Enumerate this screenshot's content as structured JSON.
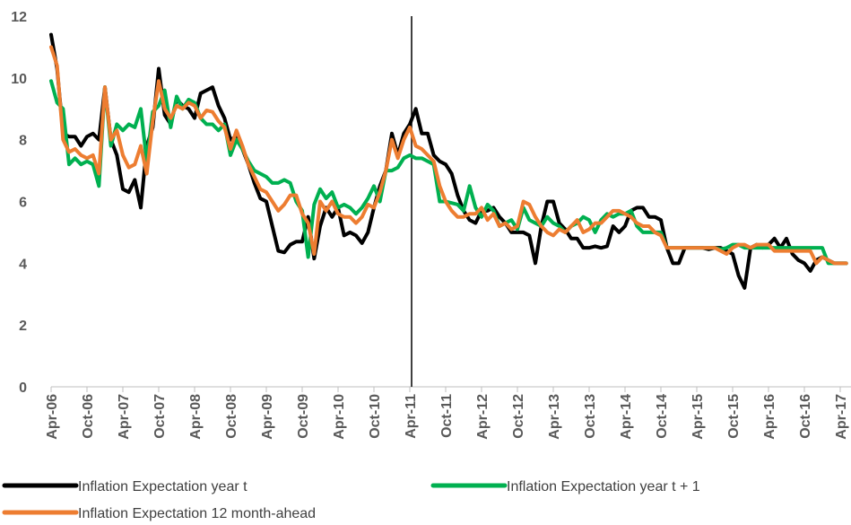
{
  "chart_data": {
    "type": "line",
    "categories": [
      "Apr-06",
      null,
      null,
      null,
      null,
      null,
      "Oct-06",
      null,
      null,
      null,
      null,
      null,
      "Apr-07",
      null,
      null,
      null,
      null,
      null,
      "Oct-07",
      null,
      null,
      null,
      null,
      null,
      "Apr-08",
      null,
      null,
      null,
      null,
      null,
      "Oct-08",
      null,
      null,
      null,
      null,
      null,
      "Apr-09",
      null,
      null,
      null,
      null,
      null,
      "Oct-09",
      null,
      null,
      null,
      null,
      null,
      "Apr-10",
      null,
      null,
      null,
      null,
      null,
      "Oct-10",
      null,
      null,
      null,
      null,
      null,
      "Apr-11",
      null,
      null,
      null,
      null,
      null,
      "Oct-11",
      null,
      null,
      null,
      null,
      null,
      "Apr-12",
      null,
      null,
      null,
      null,
      null,
      "Oct-12",
      null,
      null,
      null,
      null,
      null,
      "Apr-13",
      null,
      null,
      null,
      null,
      null,
      "Oct-13",
      null,
      null,
      null,
      null,
      null,
      "Apr-14",
      null,
      null,
      null,
      null,
      null,
      "Oct-14",
      null,
      null,
      null,
      null,
      null,
      "Apr-15",
      null,
      null,
      null,
      null,
      null,
      "Oct-15",
      null,
      null,
      null,
      null,
      null,
      "Apr-16",
      null,
      null,
      null,
      null,
      null,
      "Oct-16",
      null,
      null,
      null,
      null,
      null,
      "Apr-17",
      null
    ],
    "series": [
      {
        "name": "Inflation Expectation year t",
        "color": "#000000",
        "values": [
          11.4,
          10.3,
          8.2,
          8.1,
          8.1,
          7.8,
          8.1,
          8.2,
          8.0,
          9.7,
          8.0,
          7.5,
          6.4,
          6.3,
          6.7,
          5.8,
          7.8,
          8.4,
          10.3,
          8.8,
          8.5,
          9.3,
          9.1,
          9.0,
          8.7,
          9.5,
          9.6,
          9.7,
          9.1,
          8.7,
          8.0,
          8.1,
          7.7,
          7.2,
          6.6,
          6.1,
          6.0,
          5.2,
          4.4,
          4.35,
          4.6,
          4.7,
          4.7,
          5.5,
          4.15,
          5.2,
          5.8,
          5.5,
          5.8,
          4.9,
          5.0,
          4.9,
          4.65,
          5.0,
          5.8,
          6.5,
          7.0,
          8.2,
          7.5,
          8.2,
          8.5,
          9.0,
          8.2,
          8.2,
          7.5,
          7.3,
          7.2,
          6.9,
          6.2,
          5.7,
          5.4,
          5.3,
          5.7,
          5.7,
          5.8,
          5.5,
          5.3,
          5.0,
          5.0,
          5.0,
          4.9,
          4.0,
          5.2,
          6.0,
          6.0,
          5.3,
          5.1,
          4.8,
          4.8,
          4.5,
          4.5,
          4.55,
          4.5,
          4.55,
          5.2,
          5.0,
          5.2,
          5.7,
          5.8,
          5.8,
          5.5,
          5.5,
          5.4,
          4.5,
          4.0,
          4.0,
          4.5,
          4.5,
          4.5,
          4.5,
          4.45,
          4.5,
          4.5,
          4.4,
          4.3,
          3.6,
          3.2,
          4.5,
          4.6,
          4.5,
          4.6,
          4.8,
          4.5,
          4.8,
          4.3,
          4.1,
          4.0,
          3.75,
          4.1,
          4.2,
          4.1,
          4.0,
          4.0,
          4.0
        ]
      },
      {
        "name": "Inflation Expectation year t + 1",
        "color": "#00b050",
        "values": [
          9.9,
          9.2,
          9.0,
          7.2,
          7.4,
          7.2,
          7.3,
          7.2,
          6.5,
          9.7,
          7.8,
          8.5,
          8.3,
          8.5,
          8.4,
          9.0,
          7.3,
          8.9,
          9.1,
          9.6,
          8.4,
          9.4,
          9.0,
          9.3,
          9.2,
          8.7,
          8.5,
          8.5,
          8.3,
          8.5,
          7.5,
          8.0,
          7.7,
          7.3,
          7.0,
          6.9,
          6.8,
          6.6,
          6.6,
          6.7,
          6.6,
          6.0,
          5.7,
          4.2,
          5.9,
          6.4,
          6.1,
          6.3,
          5.8,
          5.9,
          5.8,
          5.6,
          5.8,
          6.1,
          6.5,
          6.0,
          7.0,
          7.0,
          7.1,
          7.4,
          7.5,
          7.4,
          7.4,
          7.3,
          7.2,
          6.0,
          6.0,
          5.95,
          5.9,
          5.7,
          6.5,
          5.8,
          5.5,
          5.9,
          5.7,
          5.2,
          5.3,
          5.4,
          5.1,
          5.8,
          5.4,
          5.3,
          5.2,
          5.5,
          5.3,
          5.2,
          5.0,
          5.2,
          5.3,
          5.5,
          5.4,
          5.0,
          5.4,
          5.6,
          5.5,
          5.6,
          5.6,
          5.7,
          5.2,
          5.0,
          5.0,
          5.0,
          5.0,
          4.5,
          4.5,
          4.5,
          4.5,
          4.5,
          4.5,
          4.5,
          4.5,
          4.5,
          4.45,
          4.5,
          4.6,
          4.6,
          4.5,
          4.5,
          4.5,
          4.5,
          4.5,
          4.5,
          4.5,
          4.5,
          4.5,
          4.5,
          4.5,
          4.5,
          4.5,
          4.5,
          4.0,
          4.0,
          4.0,
          4.0
        ]
      },
      {
        "name": "Inflation Expectation 12 month-ahead",
        "color": "#ed7d31",
        "values": [
          11.0,
          10.4,
          8.0,
          7.6,
          7.7,
          7.5,
          7.4,
          7.5,
          6.9,
          9.7,
          8.0,
          8.3,
          7.5,
          7.1,
          7.2,
          7.8,
          6.9,
          8.6,
          9.9,
          9.0,
          8.7,
          9.1,
          9.0,
          9.2,
          9.1,
          8.7,
          8.95,
          8.9,
          8.6,
          8.4,
          7.7,
          8.3,
          7.8,
          7.2,
          6.8,
          6.4,
          6.3,
          6.0,
          5.7,
          5.9,
          6.2,
          6.2,
          5.6,
          5.3,
          4.3,
          6.0,
          5.7,
          6.0,
          5.6,
          5.5,
          5.5,
          5.3,
          5.5,
          5.9,
          5.8,
          6.3,
          7.0,
          8.0,
          7.4,
          8.0,
          8.4,
          7.8,
          7.7,
          7.5,
          7.3,
          6.5,
          6.0,
          5.7,
          5.5,
          5.5,
          5.6,
          5.6,
          5.8,
          5.4,
          5.6,
          5.2,
          5.3,
          5.1,
          5.2,
          6.0,
          5.9,
          5.5,
          5.2,
          5.0,
          4.9,
          5.1,
          5.0,
          5.2,
          5.4,
          5.0,
          5.1,
          5.3,
          5.3,
          5.5,
          5.7,
          5.7,
          5.6,
          5.5,
          5.3,
          5.2,
          5.2,
          5.0,
          4.9,
          4.5,
          4.5,
          4.5,
          4.5,
          4.5,
          4.5,
          4.5,
          4.5,
          4.5,
          4.4,
          4.3,
          4.5,
          4.6,
          4.6,
          4.5,
          4.6,
          4.6,
          4.6,
          4.4,
          4.4,
          4.4,
          4.4,
          4.4,
          4.4,
          4.4,
          4.0,
          4.2,
          4.1,
          4.0,
          4.0,
          4.0
        ]
      }
    ],
    "ylim": [
      0,
      12
    ],
    "yticks": [
      0,
      2,
      4,
      6,
      8,
      10,
      12
    ],
    "vline": "Apr-11",
    "legend": "bottom"
  }
}
